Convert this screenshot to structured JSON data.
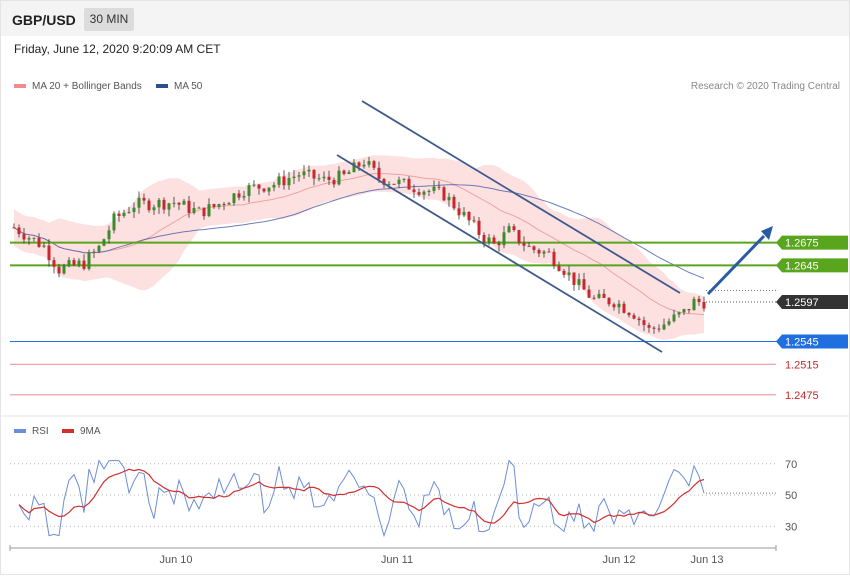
{
  "header": {
    "symbol": "GBP/USD",
    "timeframe": "30 MIN"
  },
  "datetime": "Friday, June 12, 2020 9:20:09 AM CET",
  "legend": {
    "ma20": "MA 20 + Bollinger Bands",
    "ma50": "MA 50",
    "credit": "Research © 2020 Trading Central"
  },
  "rsi_legend": {
    "rsi": "RSI",
    "ma9": "9MA"
  },
  "colors": {
    "up_candle": "#3d8a2a",
    "down_candle": "#c8282d",
    "bollinger_fill": "#fde1e1",
    "ma20": "#f2a0a0",
    "ma50": "#4a5fa8",
    "channel": "#3e5a8c",
    "resistance": "#5aa51e",
    "current": "#333333",
    "support": "#1f6fe0",
    "support_minor": "#f4a4a4",
    "rsi": "#6b8ed6",
    "rsi_ma": "#d32f2f",
    "arrow": "#2a5ca6"
  },
  "chart_data": [
    {
      "type": "candlestick",
      "title": "GBP/USD",
      "x_labels": [
        "Jun 10",
        "Jun 11",
        "Jun 12",
        "Jun 13"
      ],
      "y_range": [
        1.2455,
        1.2865
      ],
      "levels": [
        {
          "value": 1.2675,
          "label": "1.2675",
          "kind": "resistance"
        },
        {
          "value": 1.2645,
          "label": "1.2645",
          "kind": "resistance"
        },
        {
          "value": 1.2597,
          "label": "1.2597",
          "kind": "current"
        },
        {
          "value": 1.2545,
          "label": "1.2545",
          "kind": "support"
        },
        {
          "value": 1.2515,
          "label": "1.2515",
          "kind": "support-minor"
        },
        {
          "value": 1.2475,
          "label": "1.2475",
          "kind": "support-minor"
        }
      ],
      "series": [
        {
          "name": "MA 20 + Bollinger Bands"
        },
        {
          "name": "MA 50"
        }
      ]
    },
    {
      "type": "line",
      "title": "RSI",
      "y_ticks": [
        70,
        50,
        30
      ],
      "y_range": [
        18,
        82
      ],
      "series": [
        {
          "name": "RSI"
        },
        {
          "name": "9MA"
        }
      ]
    }
  ]
}
